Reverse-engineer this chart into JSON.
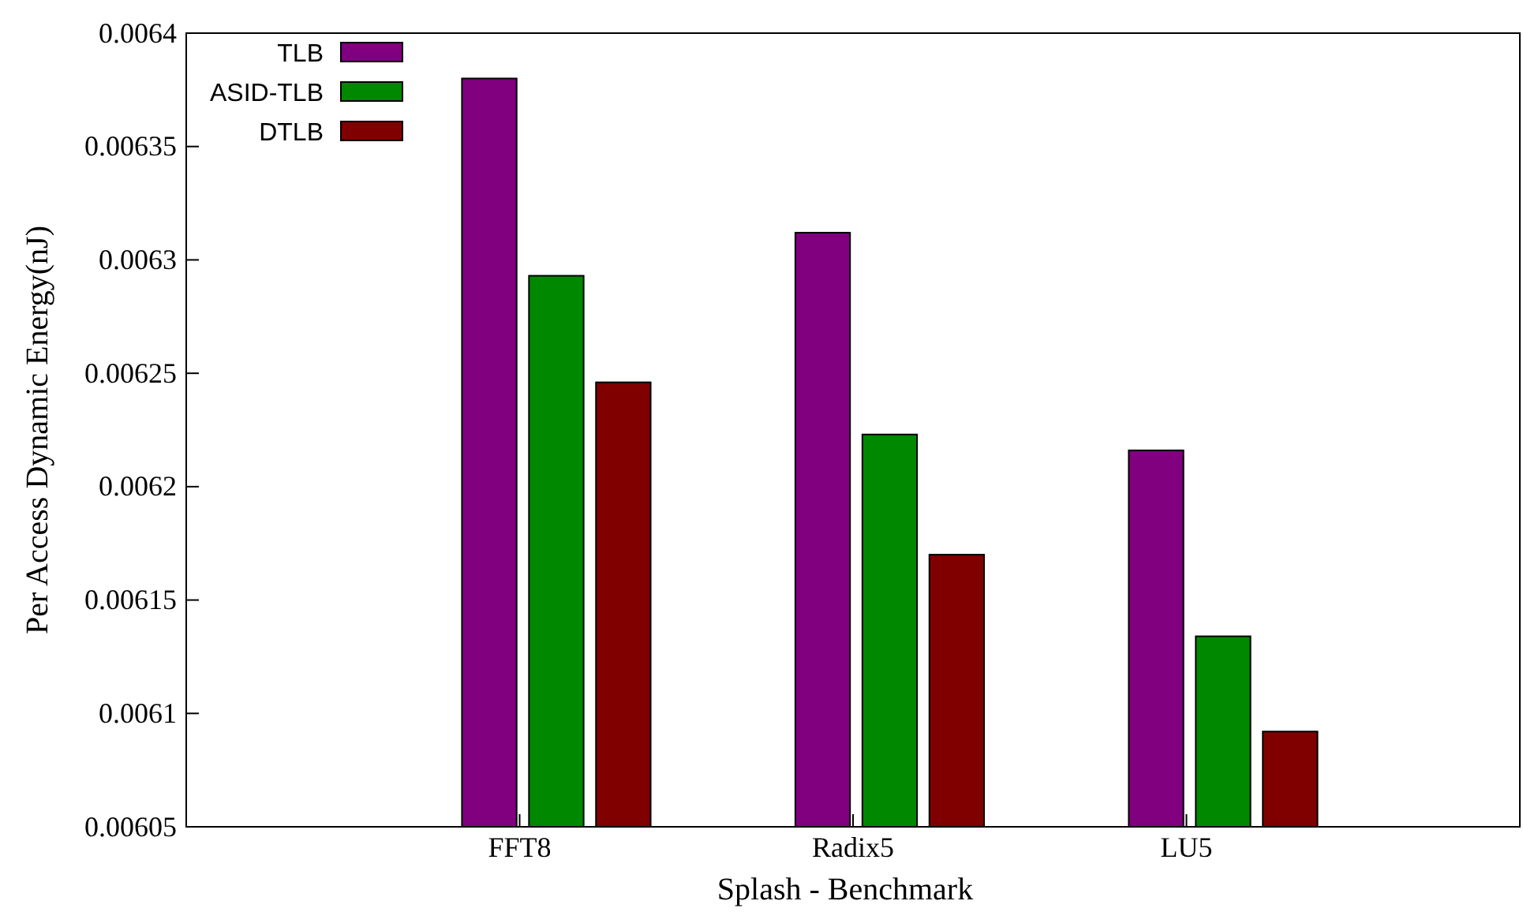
{
  "chart_data": {
    "type": "bar",
    "xlabel": "Splash - Benchmark",
    "ylabel": "Per Access Dynamic Energy(nJ)",
    "categories": [
      "FFT8",
      "Radix5",
      "LU5"
    ],
    "series": [
      {
        "name": "TLB",
        "color": "#800080",
        "values": [
          0.00638,
          0.006312,
          0.006216
        ]
      },
      {
        "name": "ASID-TLB",
        "color": "#008800",
        "values": [
          0.006293,
          0.006223,
          0.006134
        ]
      },
      {
        "name": "DTLB",
        "color": "#800000",
        "values": [
          0.006246,
          0.00617,
          0.006092
        ]
      }
    ],
    "ylim": [
      0.00605,
      0.0064
    ],
    "yticks": [
      0.00605,
      0.0061,
      0.00615,
      0.0062,
      0.00625,
      0.0063,
      0.00635,
      0.0064
    ],
    "legend": "top left",
    "grid": false
  }
}
